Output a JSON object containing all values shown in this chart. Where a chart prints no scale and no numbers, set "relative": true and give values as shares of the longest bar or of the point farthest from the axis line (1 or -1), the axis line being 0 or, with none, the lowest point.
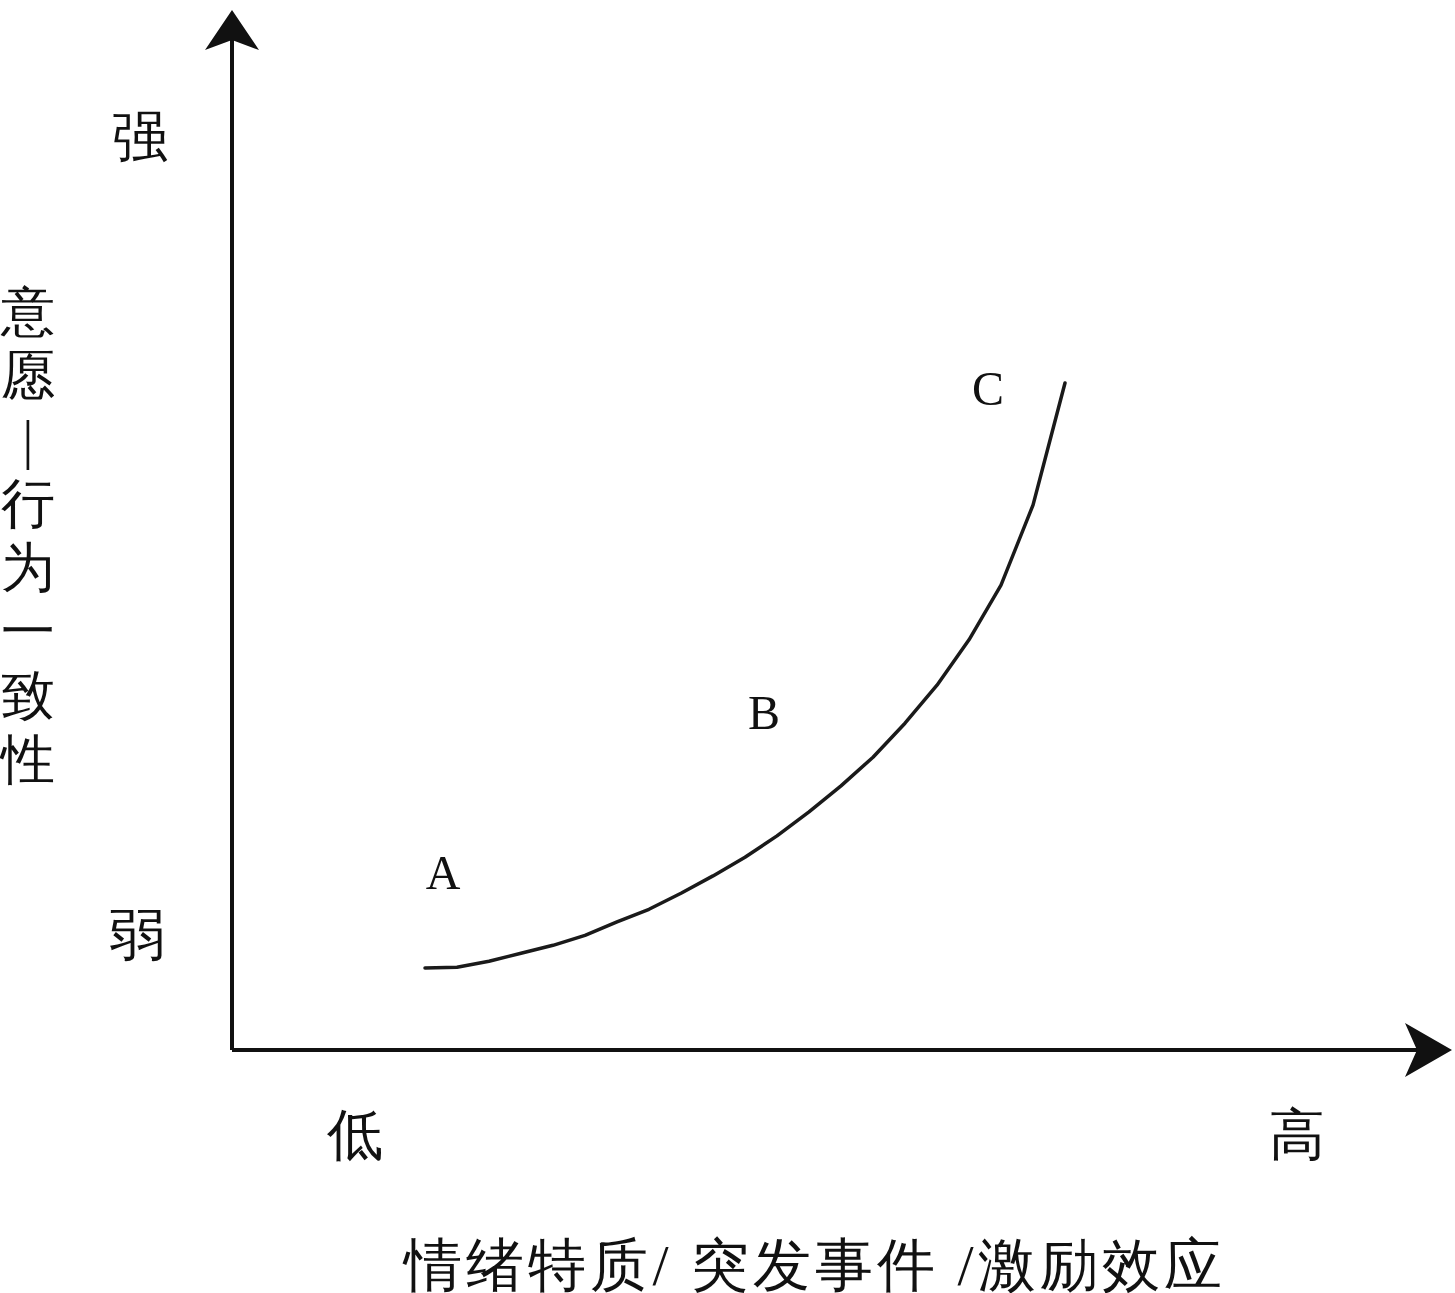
{
  "chart_data": {
    "type": "line",
    "relative": true,
    "xlabel": "情绪特质/ 突发事件 /激励效应",
    "categories": [
      null,
      null,
      null,
      null,
      null,
      null,
      null,
      null,
      null,
      null,
      null,
      null,
      null,
      null,
      null,
      null,
      null,
      null,
      null,
      null,
      null
    ],
    "series": [
      {
        "color": "#1a1a1a",
        "values": [
          0.123,
          0.124,
          0.133,
          0.145,
          0.157,
          0.172,
          0.192,
          0.211,
          0.235,
          0.261,
          0.289,
          0.321,
          0.357,
          0.396,
          0.439,
          0.49,
          0.547,
          0.615,
          0.697,
          0.817,
          1
        ]
      }
    ],
    "annotations": [
      "强",
      "弱",
      "低",
      "高",
      "A",
      "B",
      "C",
      "意愿|行为一致性"
    ]
  }
}
